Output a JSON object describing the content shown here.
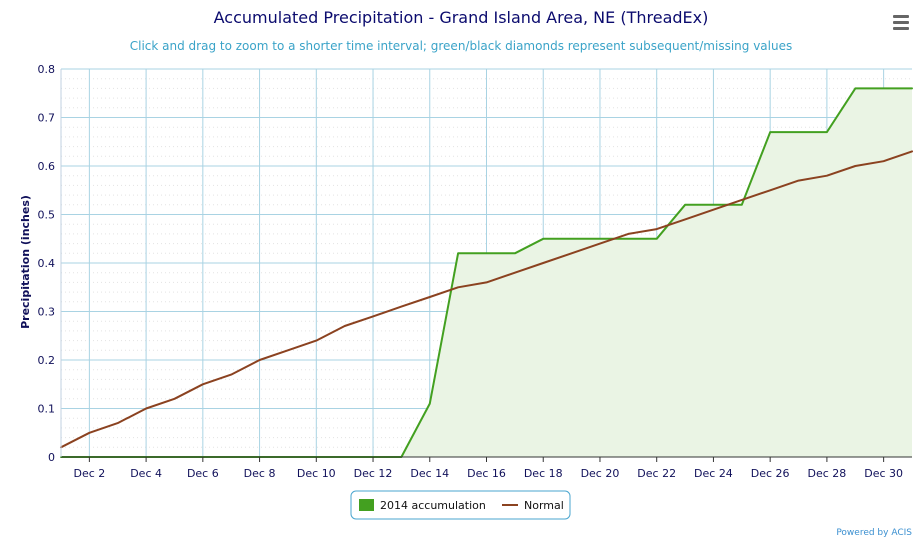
{
  "menu": {
    "icon": "hamburger-menu-icon"
  },
  "credits": "Powered by ACIS",
  "chart_data": {
    "type": "line",
    "title": "Accumulated Precipitation - Grand Island Area, NE (ThreadEx)",
    "subtitle": "Click and drag to zoom to a shorter time interval; green/black diamonds represent subsequent/missing values",
    "xlabel": "",
    "ylabel": "Precipitation (inches)",
    "xlim": [
      1,
      31
    ],
    "ylim": [
      0,
      0.8
    ],
    "grid": true,
    "legend_position": "bottom-center",
    "x_tick_labels": [
      "Dec 2",
      "Dec 4",
      "Dec 6",
      "Dec 8",
      "Dec 10",
      "Dec 12",
      "Dec 14",
      "Dec 16",
      "Dec 18",
      "Dec 20",
      "Dec 22",
      "Dec 24",
      "Dec 26",
      "Dec 28",
      "Dec 30"
    ],
    "x_tick_days": [
      2,
      4,
      6,
      8,
      10,
      12,
      14,
      16,
      18,
      20,
      22,
      24,
      26,
      28,
      30
    ],
    "y_tick_labels": [
      "0",
      "0.1",
      "0.2",
      "0.3",
      "0.4",
      "0.5",
      "0.6",
      "0.7",
      "0.8"
    ],
    "y_tick_values": [
      0,
      0.1,
      0.2,
      0.3,
      0.4,
      0.5,
      0.6,
      0.7,
      0.8
    ],
    "x": [
      1,
      2,
      3,
      4,
      5,
      6,
      7,
      8,
      9,
      10,
      11,
      12,
      13,
      14,
      15,
      16,
      17,
      18,
      19,
      20,
      21,
      22,
      23,
      24,
      25,
      26,
      27,
      28,
      29,
      30,
      31
    ],
    "series": [
      {
        "name": "2014 accumulation",
        "color": "#43a020",
        "fill": "#eaf4e4",
        "style": "area",
        "values": [
          0,
          0,
          0,
          0,
          0,
          0,
          0,
          0,
          0,
          0,
          0,
          0,
          0,
          0.11,
          0.42,
          0.42,
          0.42,
          0.45,
          0.45,
          0.45,
          0.45,
          0.45,
          0.52,
          0.52,
          0.52,
          0.67,
          0.67,
          0.67,
          0.76,
          0.76,
          0.76
        ]
      },
      {
        "name": "Normal",
        "color": "#8b4220",
        "style": "line",
        "values": [
          0.02,
          0.05,
          0.07,
          0.1,
          0.12,
          0.15,
          0.17,
          0.2,
          0.22,
          0.24,
          0.27,
          0.29,
          0.31,
          0.33,
          0.35,
          0.36,
          0.38,
          0.4,
          0.42,
          0.44,
          0.46,
          0.47,
          0.49,
          0.51,
          0.53,
          0.55,
          0.57,
          0.58,
          0.6,
          0.61,
          0.63
        ]
      }
    ]
  }
}
